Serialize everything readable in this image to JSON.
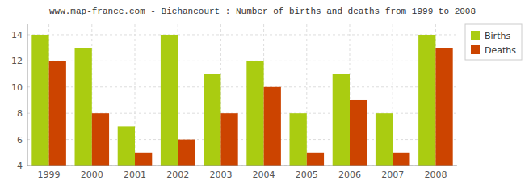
{
  "chart_data": {
    "type": "bar",
    "title": "www.map-france.com - Bichancourt : Number of births and deaths from 1999 to 2008",
    "categories": [
      "1999",
      "2000",
      "2001",
      "2002",
      "2003",
      "2004",
      "2005",
      "2006",
      "2007",
      "2008"
    ],
    "series": [
      {
        "name": "Births",
        "color": "#aacc11",
        "values": [
          14,
          13,
          7,
          14,
          11,
          12,
          8,
          11,
          8,
          14
        ]
      },
      {
        "name": "Deaths",
        "color": "#cc4400",
        "values": [
          12,
          8,
          5,
          6,
          8,
          10,
          5,
          9,
          5,
          13
        ]
      }
    ],
    "ylim": [
      4,
      14.8
    ],
    "yticks": [
      4,
      6,
      8,
      10,
      12,
      14
    ],
    "grid": true,
    "legend": "upper right"
  }
}
